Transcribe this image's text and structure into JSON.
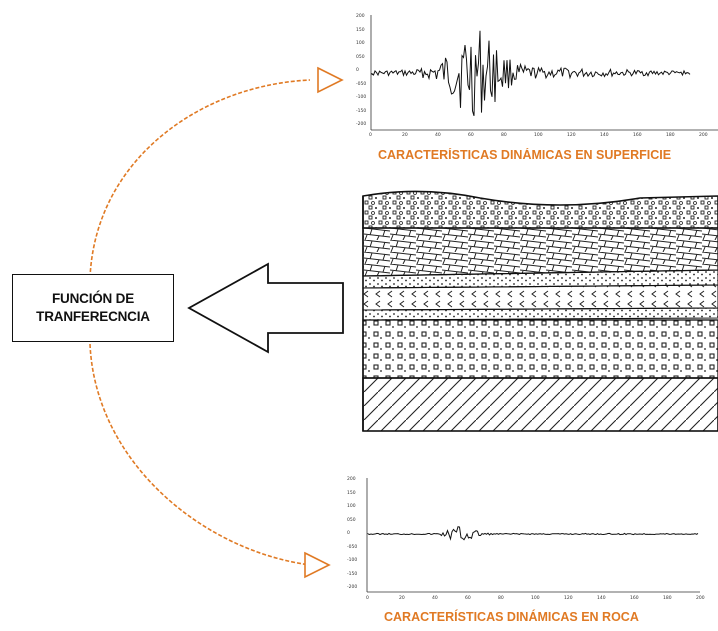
{
  "transfer_function": {
    "line1": "FUNCIÓN DE",
    "line2": "TRANFERECNCIA"
  },
  "captions": {
    "surface": "CARACTERÍSTICAS DINÁMICAS EN SUPERFICIE",
    "rock": "CARACTERÍSTICAS DINÁMICAS EN ROCA"
  },
  "surface_plot": {
    "y_ticks": [
      "200",
      "150",
      "100",
      "050",
      "0",
      "-050",
      "-100",
      "-150",
      "-200"
    ],
    "x_ticks": [
      "0",
      "20",
      "40",
      "60",
      "80",
      "100",
      "120",
      "140",
      "160",
      "180",
      "200"
    ]
  },
  "rock_plot": {
    "y_ticks": [
      "200",
      "150",
      "100",
      "050",
      "0",
      "-050",
      "-100",
      "-150",
      "-200"
    ],
    "x_ticks": [
      "0",
      "20",
      "40",
      "60",
      "80",
      "100",
      "120",
      "140",
      "160",
      "180",
      "200"
    ]
  },
  "colors": {
    "accent": "#e07a24",
    "line": "#111111"
  },
  "icons": [
    "left-arrow-icon",
    "curved-arrow-icon"
  ]
}
